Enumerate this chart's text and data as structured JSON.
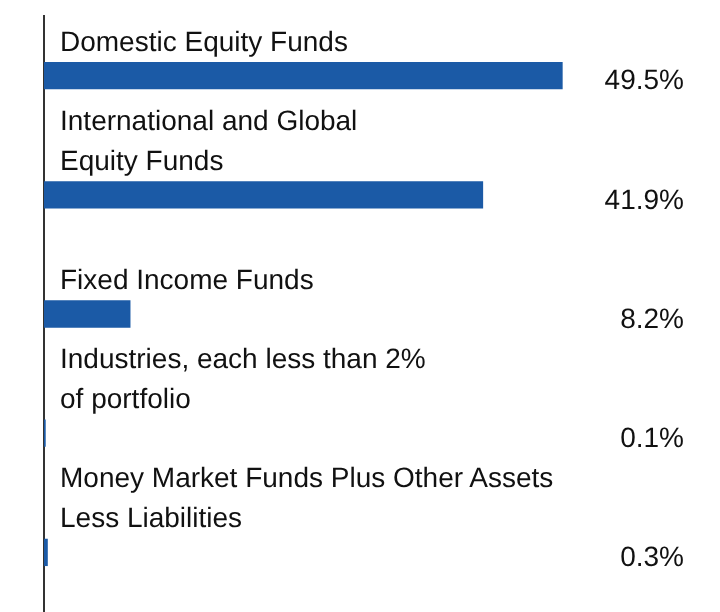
{
  "chart_data": {
    "type": "bar",
    "orientation": "horizontal",
    "categories": [
      "Domestic Equity Funds",
      "International and Global\nEquity Funds",
      "Fixed Income Funds",
      "Industries, each less than 2%\nof portfolio",
      "Money Market Funds Plus Other Assets\nLess Liabilities"
    ],
    "values": [
      49.5,
      41.9,
      8.2,
      0.1,
      0.3
    ],
    "value_labels": [
      "49.5%",
      "41.9%",
      "8.2%",
      "0.1%",
      "0.3%"
    ],
    "color": "#1b5aa6",
    "grid": false,
    "legend": false
  }
}
